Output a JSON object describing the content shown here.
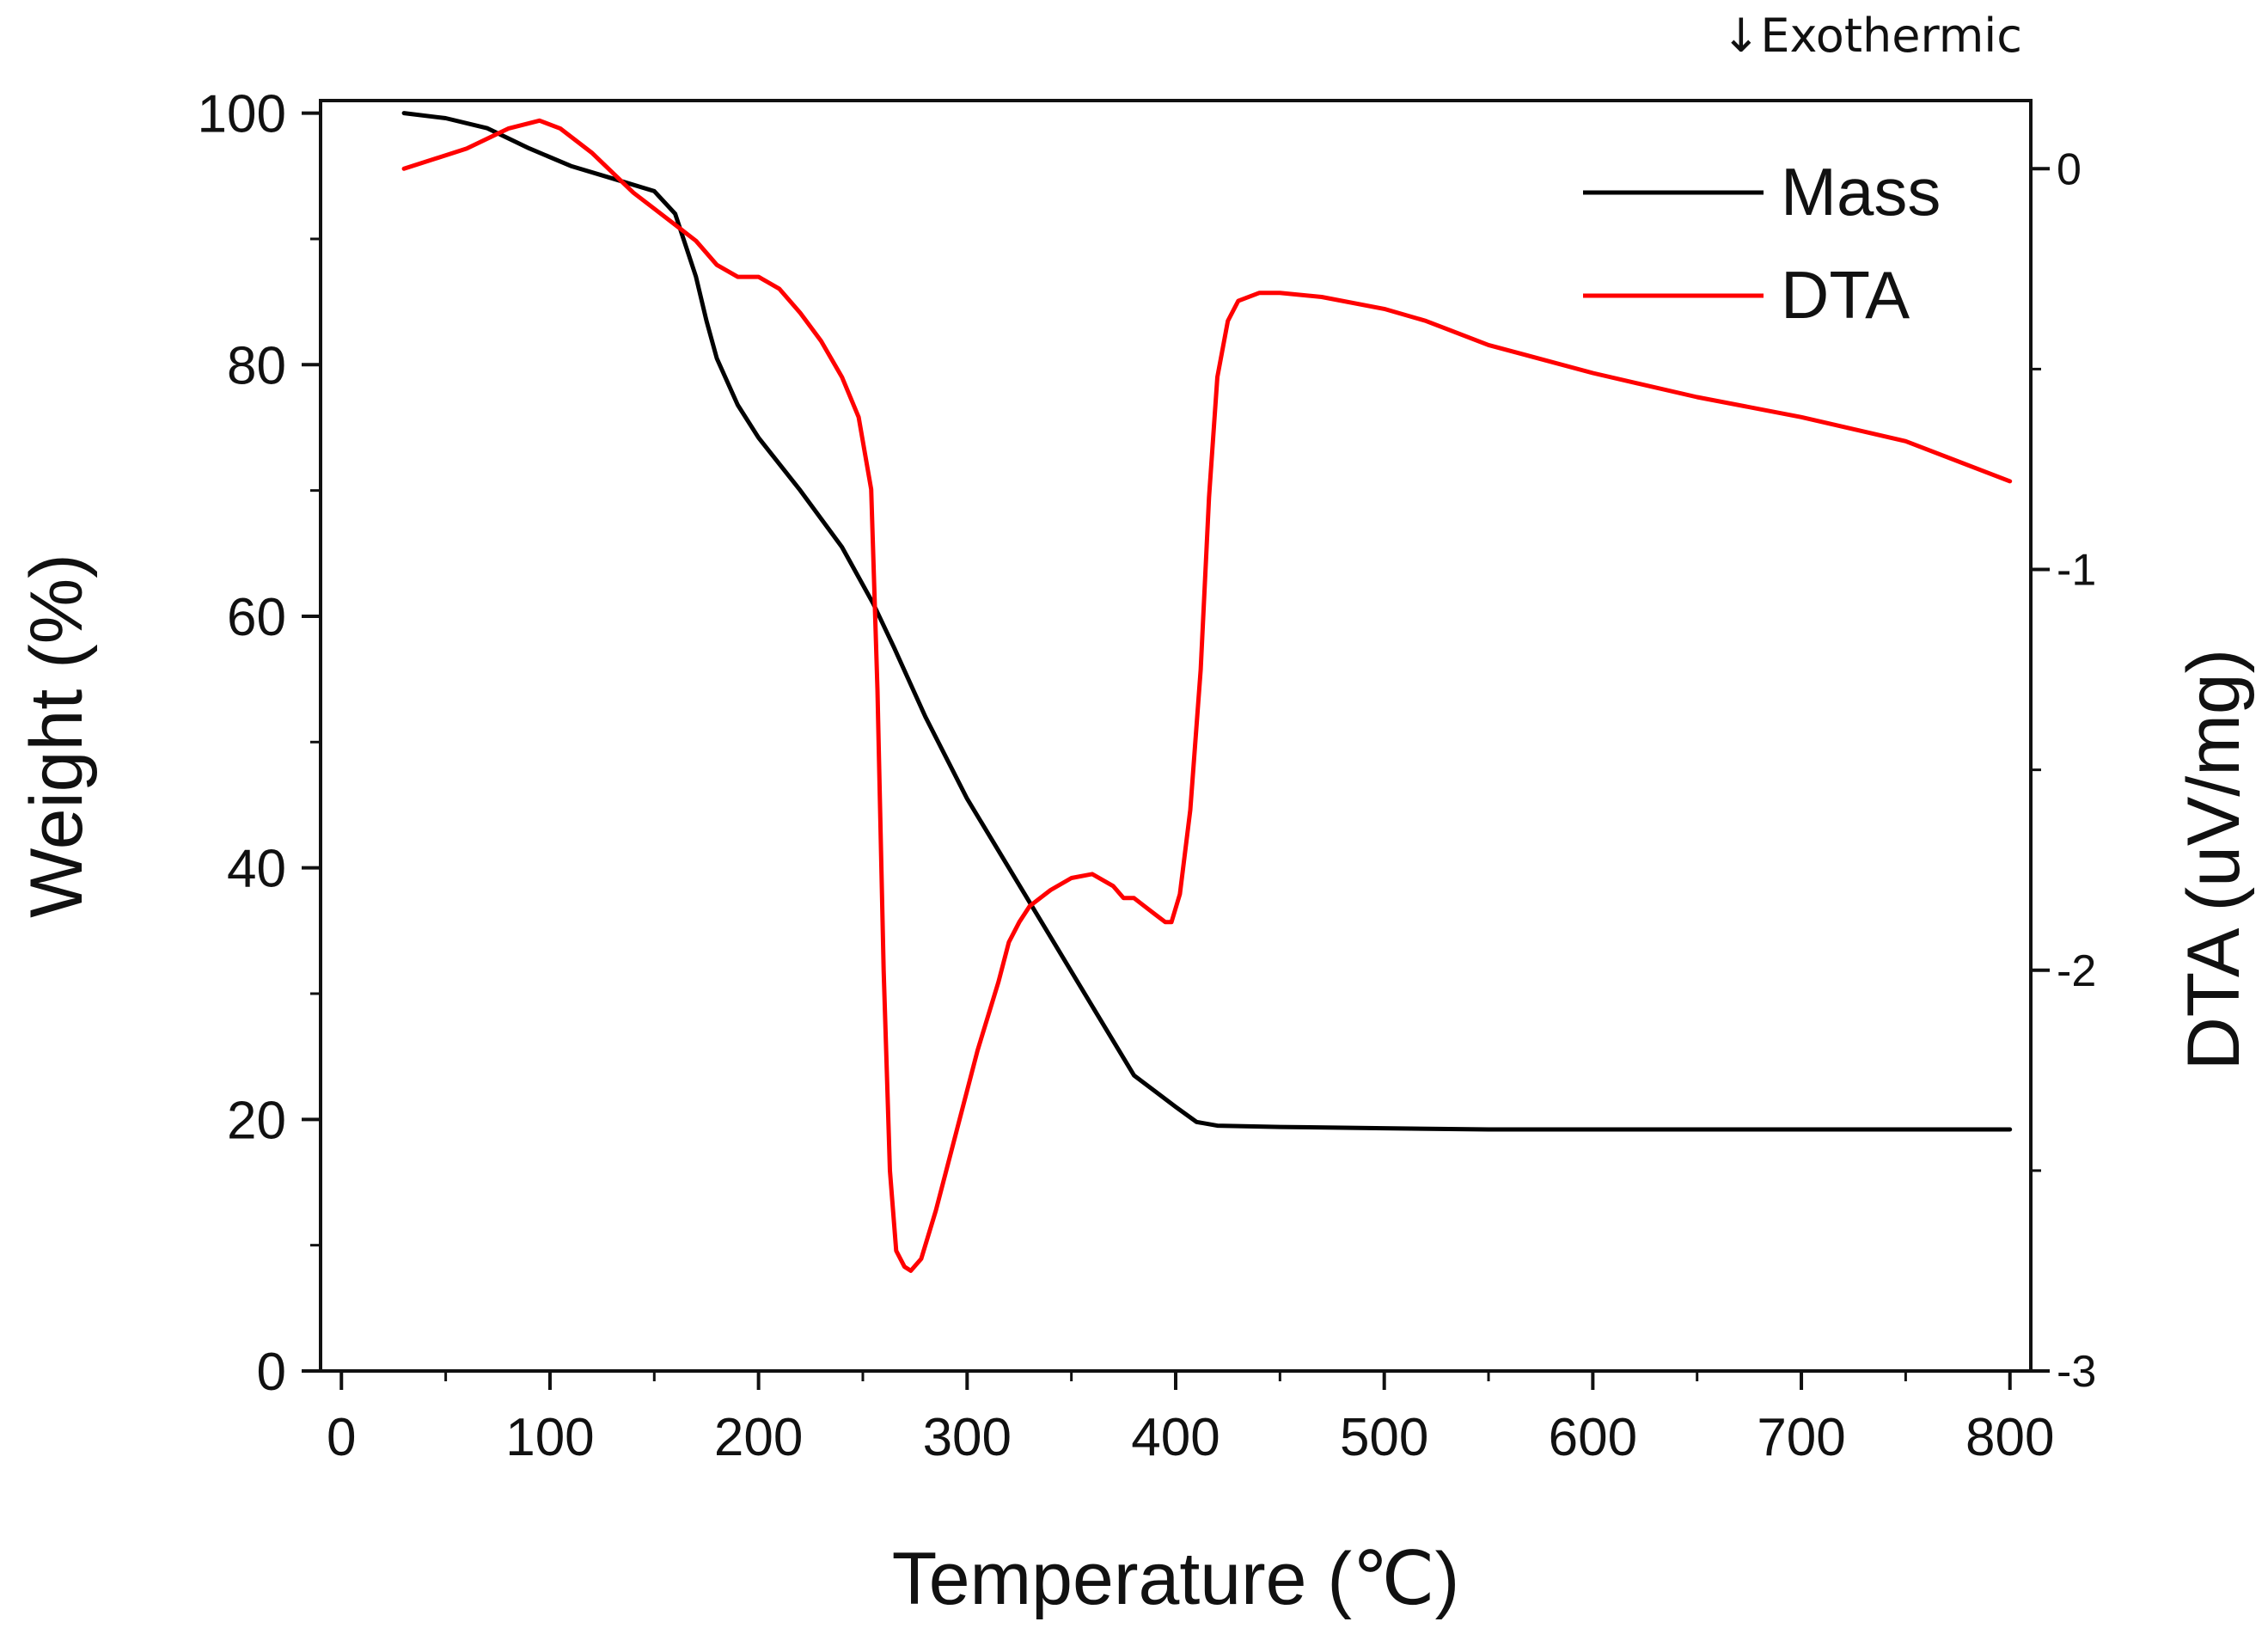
{
  "chart_data": {
    "type": "line",
    "title": "",
    "annotation": "↓Exothermic",
    "xlabel": "Temperature (℃)",
    "ylabel": "Weight (%)",
    "y2label": "DTA (uV/mg)",
    "xlim": [
      -10,
      810
    ],
    "ylim": [
      0,
      101
    ],
    "y2lim": [
      -3,
      0.17
    ],
    "x_ticks": [
      0,
      100,
      200,
      300,
      400,
      500,
      600,
      700,
      800
    ],
    "y_ticks": [
      0,
      20,
      40,
      60,
      80,
      100
    ],
    "y2_ticks": [
      -3,
      -2,
      -1,
      0
    ],
    "x_tick_labels": [
      "0",
      "100",
      "200",
      "300",
      "400",
      "500",
      "600",
      "700",
      "800"
    ],
    "y_tick_labels": [
      "0",
      "20",
      "40",
      "60",
      "80",
      "100"
    ],
    "y2_tick_labels": [
      "-3",
      "-2",
      "-1",
      "0"
    ],
    "legend": {
      "position": "top-right",
      "entries": [
        "Mass",
        "DTA"
      ]
    },
    "series": [
      {
        "name": "Mass",
        "axis": "left",
        "color": "#000000",
        "x": [
          30,
          50,
          70,
          90,
          110,
          130,
          150,
          160,
          170,
          175,
          180,
          190,
          200,
          220,
          240,
          255,
          265,
          280,
          300,
          320,
          340,
          360,
          380,
          400,
          410,
          420,
          450,
          500,
          550,
          600,
          700,
          800
        ],
        "y": [
          100,
          99.6,
          98.8,
          97.2,
          95.8,
          94.8,
          93.8,
          92.0,
          87.0,
          83.5,
          80.5,
          76.8,
          74.2,
          70.0,
          65.5,
          61.0,
          57.5,
          52.0,
          45.5,
          40.0,
          34.5,
          29.0,
          23.5,
          21.0,
          19.8,
          19.5,
          19.4,
          19.3,
          19.2,
          19.2,
          19.2,
          19.2
        ]
      },
      {
        "name": "DTA",
        "axis": "right",
        "color": "#ff0000",
        "x": [
          30,
          60,
          80,
          95,
          105,
          120,
          140,
          160,
          170,
          180,
          190,
          200,
          210,
          220,
          230,
          240,
          248,
          254,
          257,
          260,
          263,
          266,
          270,
          273,
          278,
          285,
          295,
          305,
          315,
          320,
          325,
          330,
          340,
          350,
          360,
          370,
          375,
          380,
          385,
          390,
          395,
          398,
          402,
          407,
          412,
          416,
          420,
          425,
          430,
          440,
          450,
          470,
          500,
          520,
          550,
          600,
          650,
          700,
          750,
          800
        ],
        "y": [
          0.0,
          0.05,
          0.1,
          0.12,
          0.1,
          0.04,
          -0.06,
          -0.14,
          -0.18,
          -0.24,
          -0.27,
          -0.27,
          -0.3,
          -0.36,
          -0.43,
          -0.52,
          -0.62,
          -0.8,
          -1.3,
          -2.0,
          -2.5,
          -2.7,
          -2.74,
          -2.75,
          -2.72,
          -2.6,
          -2.4,
          -2.2,
          -2.03,
          -1.93,
          -1.88,
          -1.84,
          -1.8,
          -1.77,
          -1.76,
          -1.79,
          -1.82,
          -1.82,
          -1.84,
          -1.86,
          -1.88,
          -1.88,
          -1.81,
          -1.6,
          -1.25,
          -0.82,
          -0.52,
          -0.38,
          -0.33,
          -0.31,
          -0.31,
          -0.32,
          -0.35,
          -0.38,
          -0.44,
          -0.51,
          -0.57,
          -0.62,
          -0.68,
          -0.78
        ]
      }
    ]
  }
}
